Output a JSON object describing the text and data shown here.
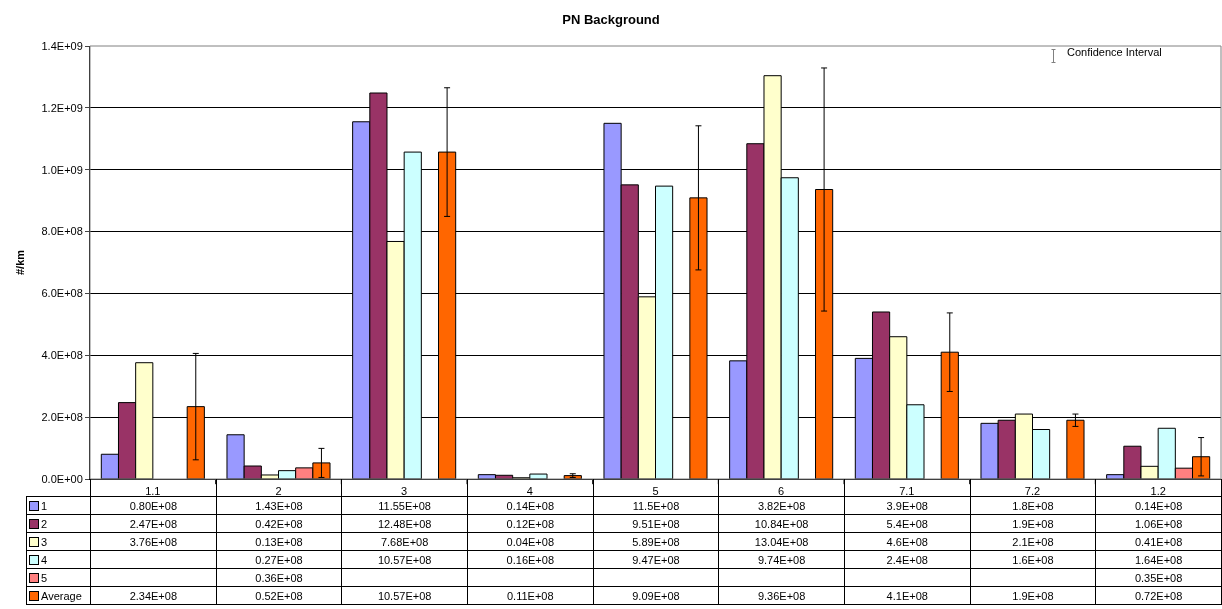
{
  "chart_data": {
    "type": "bar",
    "title": "PN Background",
    "ylabel": "#/km",
    "categories": [
      "1.1",
      "2",
      "3",
      "4",
      "5",
      "6",
      "7.1",
      "7.2",
      "1.2"
    ],
    "series": [
      {
        "name": "1",
        "color": "#9999ff",
        "values": [
          80000000,
          143000000,
          1155000000,
          14000000,
          1150000000,
          382000000,
          390000000,
          180000000,
          14000000
        ],
        "value_labels": [
          "0.80E+08",
          "1.43E+08",
          "11.55E+08",
          "0.14E+08",
          "11.5E+08",
          "3.82E+08",
          "3.9E+08",
          "1.8E+08",
          "0.14E+08"
        ]
      },
      {
        "name": "2",
        "color": "#993366",
        "values": [
          247000000,
          42000000,
          1248000000,
          12000000,
          951000000,
          1084000000,
          540000000,
          190000000,
          106000000
        ],
        "value_labels": [
          "2.47E+08",
          "0.42E+08",
          "12.48E+08",
          "0.12E+08",
          "9.51E+08",
          "10.84E+08",
          "5.4E+08",
          "1.9E+08",
          "1.06E+08"
        ]
      },
      {
        "name": "3",
        "color": "#ffffcc",
        "values": [
          376000000,
          13000000,
          768000000,
          4000000,
          589000000,
          1304000000,
          460000000,
          210000000,
          41000000
        ],
        "value_labels": [
          "3.76E+08",
          "0.13E+08",
          "7.68E+08",
          "0.04E+08",
          "5.89E+08",
          "13.04E+08",
          "4.6E+08",
          "2.1E+08",
          "0.41E+08"
        ]
      },
      {
        "name": "4",
        "color": "#ccffff",
        "values": [
          null,
          27000000,
          1057000000,
          16000000,
          947000000,
          974000000,
          240000000,
          160000000,
          164000000
        ],
        "value_labels": [
          null,
          "0.27E+08",
          "10.57E+08",
          "0.16E+08",
          "9.47E+08",
          "9.74E+08",
          "2.4E+08",
          "1.6E+08",
          "1.64E+08"
        ]
      },
      {
        "name": "5",
        "color": "#ff8080",
        "values": [
          null,
          36000000,
          null,
          null,
          null,
          null,
          null,
          null,
          35000000
        ],
        "value_labels": [
          null,
          "0.36E+08",
          null,
          null,
          null,
          null,
          null,
          null,
          "0.35E+08"
        ]
      },
      {
        "name": "Average",
        "color": "#ff6600",
        "values": [
          234000000,
          52000000,
          1057000000,
          11000000,
          909000000,
          936000000,
          410000000,
          190000000,
          72000000
        ],
        "value_labels": [
          "2.34E+08",
          "0.52E+08",
          "10.57E+08",
          "0.11E+08",
          "9.09E+08",
          "9.36E+08",
          "4.1E+08",
          "1.9E+08",
          "0.72E+08"
        ],
        "errors": [
          172000000,
          47000000,
          208000000,
          6000000,
          233000000,
          393000000,
          127000000,
          20000000,
          62000000
        ]
      }
    ],
    "ylim": [
      0,
      1400000000
    ],
    "yticks": [
      {
        "value": 0,
        "label": "0.0E+00"
      },
      {
        "value": 200000000,
        "label": "2.0E+08"
      },
      {
        "value": 400000000,
        "label": "4.0E+08"
      },
      {
        "value": 600000000,
        "label": "6.0E+08"
      },
      {
        "value": 800000000,
        "label": "8.0E+08"
      },
      {
        "value": 1000000000,
        "label": "1.0E+09"
      },
      {
        "value": 1200000000,
        "label": "1.2E+09"
      },
      {
        "value": 1400000000,
        "label": "1.4E+09"
      }
    ],
    "grid": "y",
    "legend": "bottom left",
    "annotations": [
      "Confidence Interval"
    ]
  }
}
